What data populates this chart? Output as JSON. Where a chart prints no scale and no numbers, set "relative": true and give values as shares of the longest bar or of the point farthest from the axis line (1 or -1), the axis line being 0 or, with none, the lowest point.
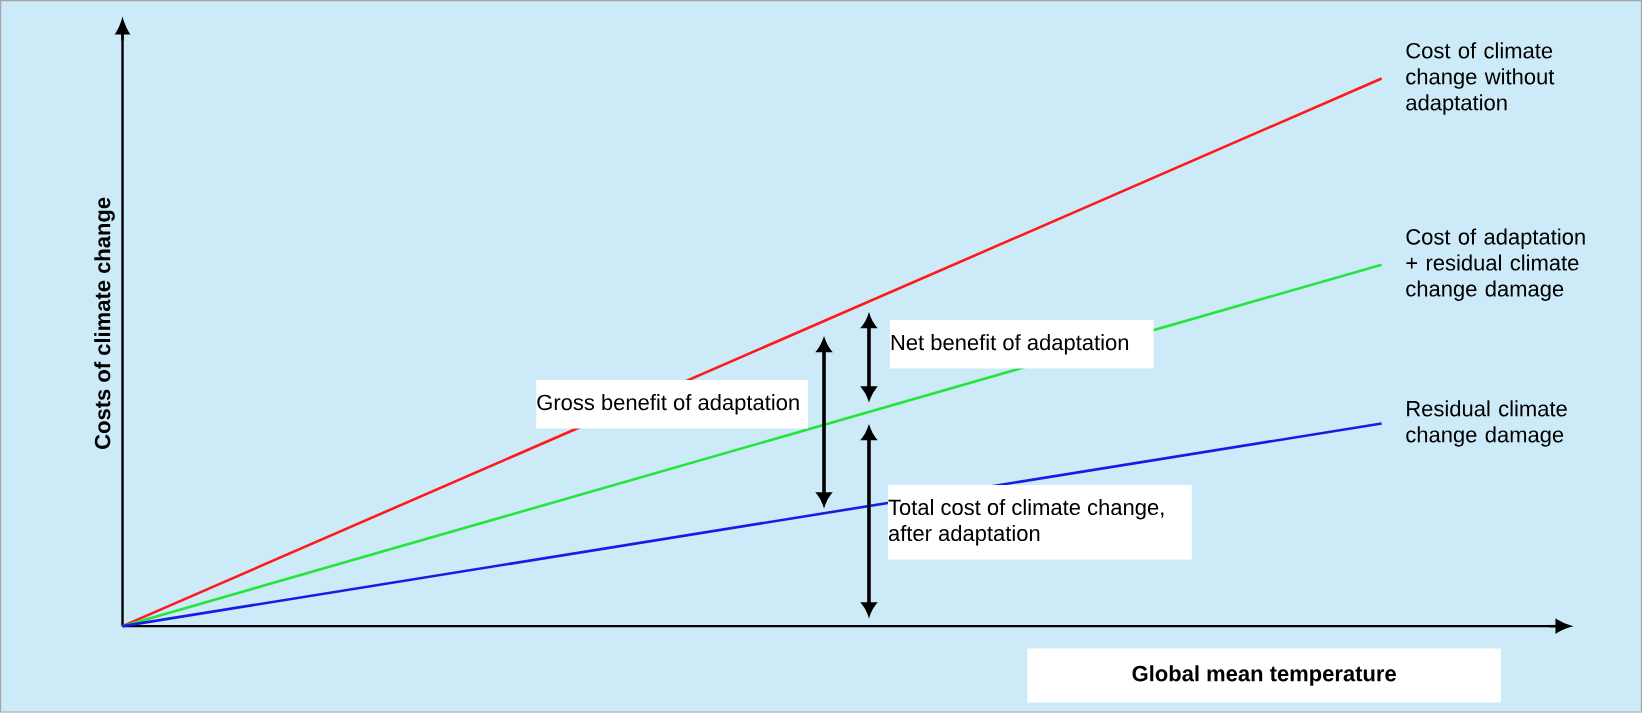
{
  "chart_data": {
    "type": "line",
    "relative": true,
    "categories": [
      null,
      null
    ],
    "marker": "none",
    "legend": false,
    "xlabel": "Global mean temperature",
    "ylabel": "Costs of climate change",
    "series": [
      {
        "name": "Cost of climate change without adaptation",
        "color": "#ff1a1a",
        "values": [
          0,
          1
        ]
      },
      {
        "name": "Cost of adaptation + residual climate change damage",
        "color": "#22e63a",
        "values": [
          0,
          0.66
        ]
      },
      {
        "name": "Residual climate change damage",
        "color": "#1a1ae6",
        "values": [
          0,
          0.37
        ]
      }
    ],
    "annotations": [
      "Net benefit of adaptation",
      "Gross benefit of adaptation",
      "Total cost of climate change, after adaptation"
    ]
  }
}
